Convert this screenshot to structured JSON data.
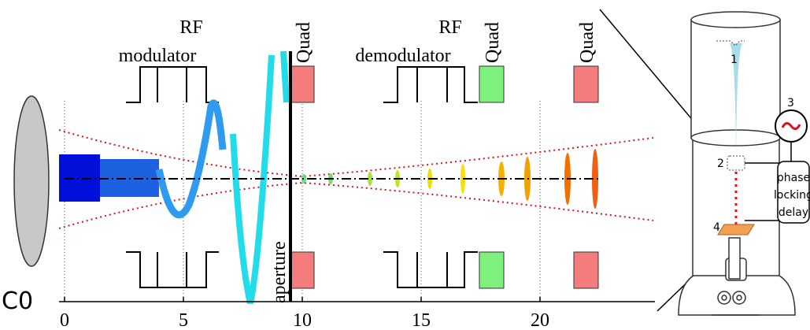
{
  "left_panel": {
    "rf_modulator": [
      "RF",
      "modulator"
    ],
    "rf_demodulator": [
      "RF",
      "demodulator"
    ],
    "quad_labels": [
      "Quad",
      "Quad",
      "Quad"
    ],
    "aperture": "aperture",
    "lens": "C0",
    "axis": {
      "xlim": [
        0,
        25
      ],
      "xticks": [
        0,
        5,
        10,
        15,
        20
      ]
    }
  },
  "right_panel": {
    "markers": [
      "1",
      "2",
      "3",
      "4"
    ],
    "box": [
      "phase",
      "locking",
      "delay"
    ]
  }
}
